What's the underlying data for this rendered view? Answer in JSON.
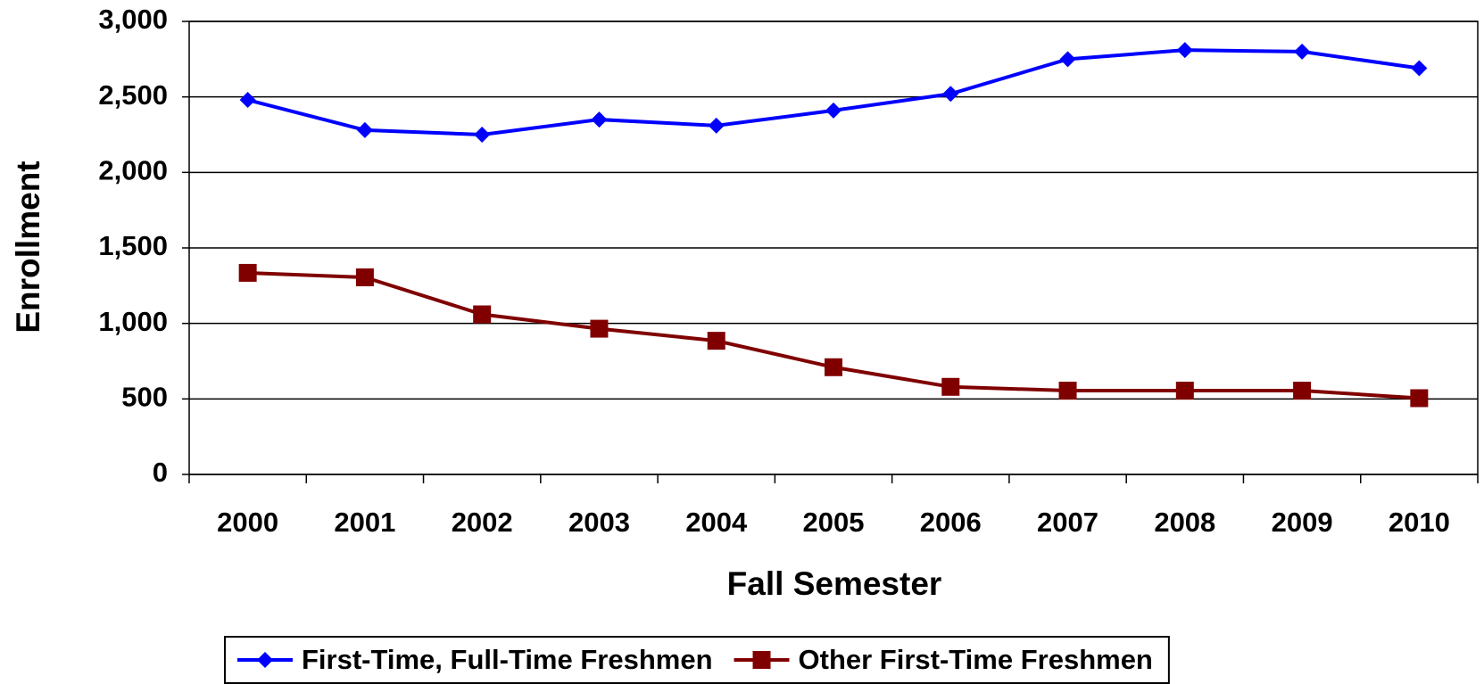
{
  "chart_data": {
    "type": "line",
    "x_label": "Fall Semester",
    "y_label": "Enrollment",
    "categories": [
      "2000",
      "2001",
      "2002",
      "2003",
      "2004",
      "2005",
      "2006",
      "2007",
      "2008",
      "2009",
      "2010"
    ],
    "series": [
      {
        "name": "First-Time, Full-Time Freshmen",
        "color": "#0000ff",
        "marker": "diamond",
        "values": [
          2480,
          2280,
          2250,
          2350,
          2310,
          2410,
          2520,
          2750,
          2810,
          2800,
          2690
        ]
      },
      {
        "name": "Other First-Time Freshmen",
        "color": "#800000",
        "marker": "square",
        "values": [
          1335,
          1305,
          1060,
          965,
          885,
          710,
          580,
          555,
          555,
          555,
          505
        ]
      }
    ],
    "ylim": [
      0,
      3000
    ],
    "yticks": [
      0,
      500,
      {
        "value": 1000,
        "label": "1,000"
      },
      {
        "value": 1500,
        "label": "1,500"
      },
      {
        "value": 2000,
        "label": "2,000"
      },
      {
        "value": 2500,
        "label": "2,500"
      },
      {
        "value": 3000,
        "label": "3,000"
      }
    ],
    "grid": true,
    "legend": "bottom"
  }
}
